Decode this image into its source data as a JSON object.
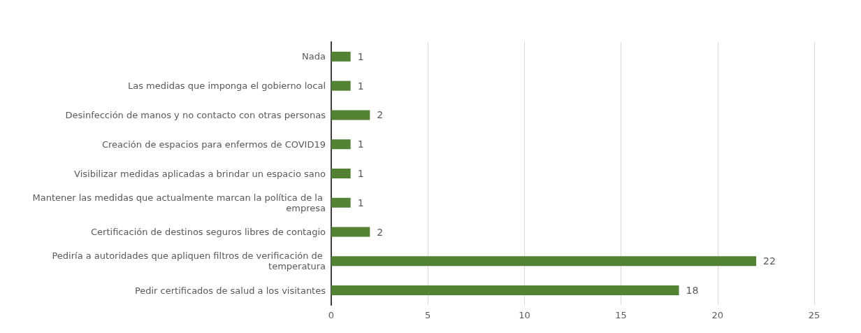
{
  "chart_data": {
    "type": "bar",
    "orientation": "horizontal",
    "categories": [
      "Nada",
      "Las medidas que imponga el gobierno local",
      "Desinfección de manos y no contacto con otras personas",
      "Creación de espacios para enfermos de COVID19",
      "Visibilizar medidas aplicadas a brindar un espacio sano",
      "Mantener las medidas que actualmente marcan la política de la empresa",
      "Certificación de destinos seguros libres de contagio",
      "Pediría a autoridades que apliquen filtros de verificación de temperatura",
      "Pedir certificados de salud a los visitantes"
    ],
    "values": [
      1,
      1,
      2,
      1,
      1,
      1,
      2,
      22,
      18
    ],
    "color": "#548235",
    "xlim": [
      0,
      25
    ],
    "xticks": [
      0,
      5,
      10,
      15,
      20,
      25
    ],
    "grid": "x",
    "data_labels": true
  }
}
